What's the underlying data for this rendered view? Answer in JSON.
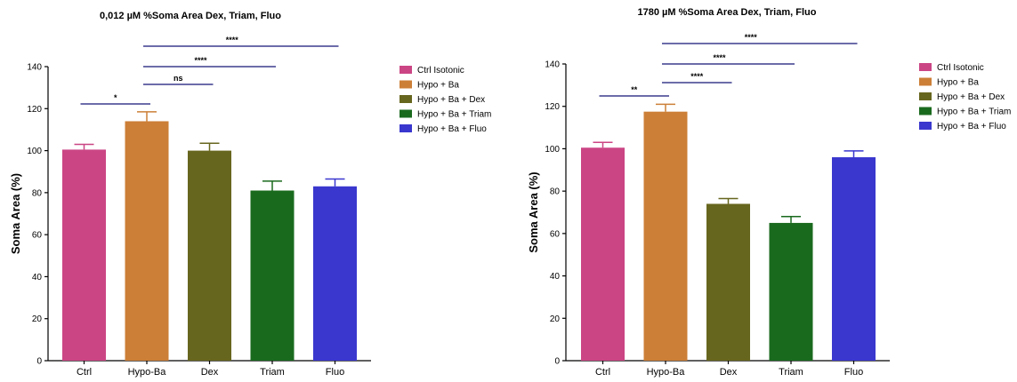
{
  "chart_data": [
    {
      "type": "bar",
      "title": "0,012 µM %Soma Area Dex, Triam, Fluo",
      "xlabel": "",
      "ylabel": "Soma Area (%)",
      "ylim": [
        0,
        140
      ],
      "yticks": [
        0,
        20,
        40,
        60,
        80,
        100,
        120,
        140
      ],
      "grid": false,
      "legend_position": "right",
      "categories": [
        "Ctrl",
        "Hypo-Ba",
        "Dex",
        "Triam",
        "Fluo"
      ],
      "legend": [
        "Ctrl Isotonic",
        "Hypo + Ba",
        "Hypo + Ba + Dex",
        "Hypo + Ba + Triam",
        "Hypo + Ba + Fluo"
      ],
      "colors": [
        "#CB4584",
        "#CC7F37",
        "#67661E",
        "#1A6A1E",
        "#3A37CE"
      ],
      "values": [
        100.5,
        114,
        100,
        81,
        83
      ],
      "errors": [
        2.5,
        4.5,
        3.5,
        4.5,
        3.5
      ],
      "significance": [
        {
          "from": 0,
          "to": 1,
          "label": "*"
        },
        {
          "from": 1,
          "to": 2,
          "label": "ns"
        },
        {
          "from": 1,
          "to": 3,
          "label": "****"
        },
        {
          "from": 1,
          "to": 4,
          "label": "****"
        }
      ]
    },
    {
      "type": "bar",
      "title": "1780 µM %Soma Area Dex, Triam, Fluo",
      "xlabel": "",
      "ylabel": "Soma Area (%)",
      "ylim": [
        0,
        140
      ],
      "yticks": [
        0,
        20,
        40,
        60,
        80,
        100,
        120,
        140
      ],
      "grid": false,
      "legend_position": "right",
      "categories": [
        "Ctrl",
        "Hypo-Ba",
        "Dex",
        "Triam",
        "Fluo"
      ],
      "legend": [
        "Ctrl Isotonic",
        "Hypo + Ba",
        "Hypo + Ba + Dex",
        "Hypo + Ba + Triam",
        "Hypo + Ba + Fluo"
      ],
      "colors": [
        "#CB4584",
        "#CC7F37",
        "#67661E",
        "#1A6A1E",
        "#3A37CE"
      ],
      "values": [
        100.5,
        117.5,
        74,
        65,
        96
      ],
      "errors": [
        2.5,
        3.5,
        2.5,
        3,
        3
      ],
      "significance": [
        {
          "from": 0,
          "to": 1,
          "label": "**"
        },
        {
          "from": 1,
          "to": 2,
          "label": "****"
        },
        {
          "from": 1,
          "to": 3,
          "label": "****"
        },
        {
          "from": 1,
          "to": 4,
          "label": "****"
        }
      ]
    }
  ]
}
